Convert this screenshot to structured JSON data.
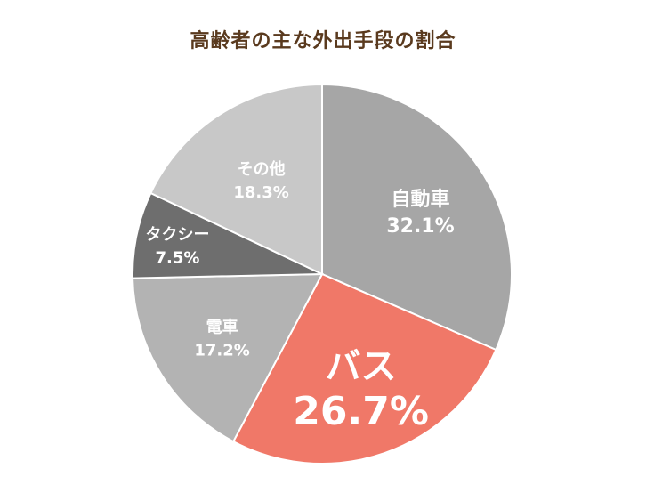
{
  "chart_data": {
    "type": "pie",
    "title": "高齢者の主な外出手段の割合",
    "slices": [
      {
        "label": "自動車",
        "value": 32.1,
        "value_text": "32.1%",
        "color": "#a6a6a6"
      },
      {
        "label": "バス",
        "value": 26.7,
        "value_text": "26.7%",
        "color": "#f07868"
      },
      {
        "label": "電車",
        "value": 17.2,
        "value_text": "17.2%",
        "color": "#b3b3b3"
      },
      {
        "label": "タクシー",
        "value": 7.5,
        "value_text": "7.5%",
        "color": "#6e6e6e"
      },
      {
        "label": "その他",
        "value": 18.3,
        "value_text": "18.3%",
        "color": "#c8c8c8"
      }
    ],
    "start": "12 o'clock",
    "direction": "clockwise",
    "highlighted_slice": "バス",
    "legend": "none"
  }
}
